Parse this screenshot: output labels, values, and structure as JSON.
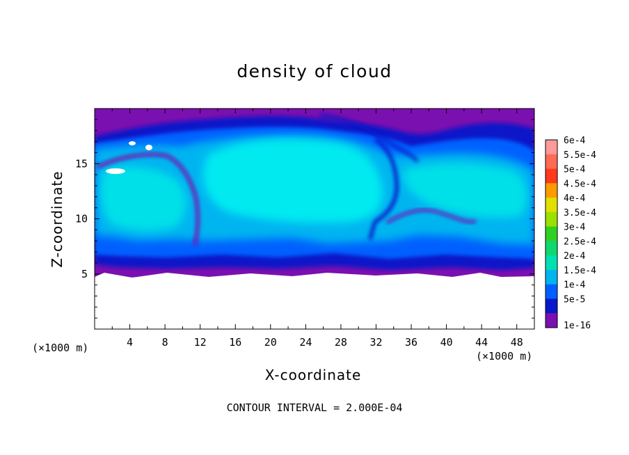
{
  "chart_data": {
    "type": "heatmap",
    "title": "density of cloud",
    "xlabel": "X-coordinate",
    "ylabel": "Z-coordinate",
    "x_unit_label": "(×1000 m)",
    "xlim": [
      0,
      50
    ],
    "ylim": [
      0,
      20
    ],
    "x_ticks": [
      4,
      8,
      12,
      16,
      20,
      24,
      28,
      32,
      36,
      40,
      44,
      48
    ],
    "y_ticks": [
      5,
      10,
      15
    ],
    "footer": "CONTOUR INTERVAL = 2.000E-04",
    "colorbar": {
      "labels": [
        "6e-4",
        "5.5e-4",
        "5e-4",
        "4.5e-4",
        "4e-4",
        "3.5e-4",
        "3e-4",
        "2.5e-4",
        "2e-4",
        "1.5e-4",
        "1e-4",
        "5e-5",
        "1e-16"
      ],
      "colors": [
        "#ff9a9a",
        "#ff6a55",
        "#ff3a1a",
        "#ff9a00",
        "#e0e000",
        "#9ae000",
        "#30d020",
        "#10d870",
        "#00e0b0",
        "#00b4f0",
        "#0060ff",
        "#0818c8",
        "#7a10b0"
      ]
    },
    "grid": false
  }
}
